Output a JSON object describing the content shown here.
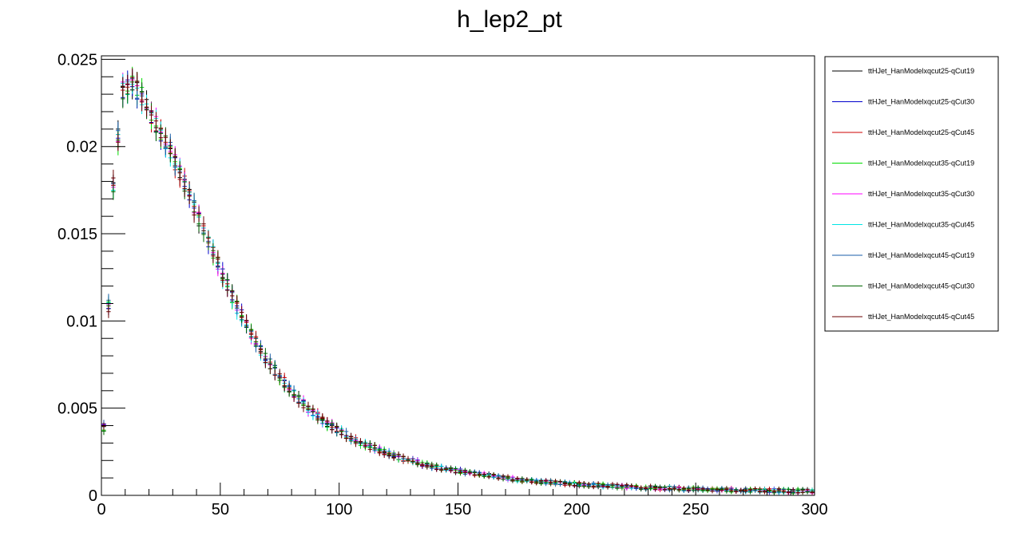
{
  "chart_data": {
    "type": "scatter",
    "title": "h_lep2_pt",
    "xlabel": "",
    "ylabel": "",
    "xlim": [
      0,
      300
    ],
    "ylim": [
      0,
      0.0252
    ],
    "bin_width": 2,
    "x_ticks": [
      0,
      50,
      100,
      150,
      200,
      250,
      300
    ],
    "x_tick_labels": [
      "0",
      "50",
      "100",
      "150",
      "200",
      "250",
      "300"
    ],
    "y_ticks": [
      0,
      0.005,
      0.01,
      0.015,
      0.02,
      0.025
    ],
    "y_tick_labels": [
      "0",
      "0.005",
      "0.01",
      "0.015",
      "0.02",
      "0.025"
    ],
    "grid": false,
    "legend_position": "right",
    "shape": {
      "x": [
        1,
        5,
        9,
        13,
        17,
        21,
        25,
        29,
        33,
        37,
        41,
        45,
        51,
        57,
        63,
        69,
        75,
        81,
        87,
        93,
        99,
        105,
        111,
        117,
        125,
        135,
        145,
        155,
        165,
        175,
        185,
        195,
        205,
        215,
        225,
        235,
        245,
        255,
        265,
        275,
        285,
        299
      ],
      "y": [
        0.0039,
        0.0178,
        0.0232,
        0.0236,
        0.0229,
        0.0218,
        0.0207,
        0.0198,
        0.0185,
        0.0172,
        0.0158,
        0.0146,
        0.0126,
        0.0108,
        0.0093,
        0.0079,
        0.0068,
        0.0058,
        0.005,
        0.0043,
        0.0038,
        0.0033,
        0.0029,
        0.0026,
        0.0022,
        0.0018,
        0.0015,
        0.0013,
        0.0011,
        0.0009,
        0.00078,
        0.00068,
        0.0006,
        0.00053,
        0.00047,
        0.00042,
        0.00038,
        0.00034,
        0.00031,
        0.00028,
        0.00026,
        0.00024
      ]
    },
    "series": [
      {
        "name": "ttHJet_HanModelxqcut25-qCut19",
        "color": "#000000"
      },
      {
        "name": "ttHJet_HanModelxqcut25-qCut30",
        "color": "#0000cc"
      },
      {
        "name": "ttHJet_HanModelxqcut25-qCut45",
        "color": "#cc0000"
      },
      {
        "name": "ttHJet_HanModelxqcut35-qCut19",
        "color": "#00dd00"
      },
      {
        "name": "ttHJet_HanModelxqcut35-qCut30",
        "color": "#ff00ff"
      },
      {
        "name": "ttHJet_HanModelxqcut35-qCut45",
        "color": "#00e5e5"
      },
      {
        "name": "ttHJet_HanModelxqcut45-qCut19",
        "color": "#1a5ea8"
      },
      {
        "name": "ttHJet_HanModelxqcut45-qCut30",
        "color": "#006600"
      },
      {
        "name": "ttHJet_HanModelxqcut45-qCut45",
        "color": "#6b0000"
      }
    ]
  }
}
